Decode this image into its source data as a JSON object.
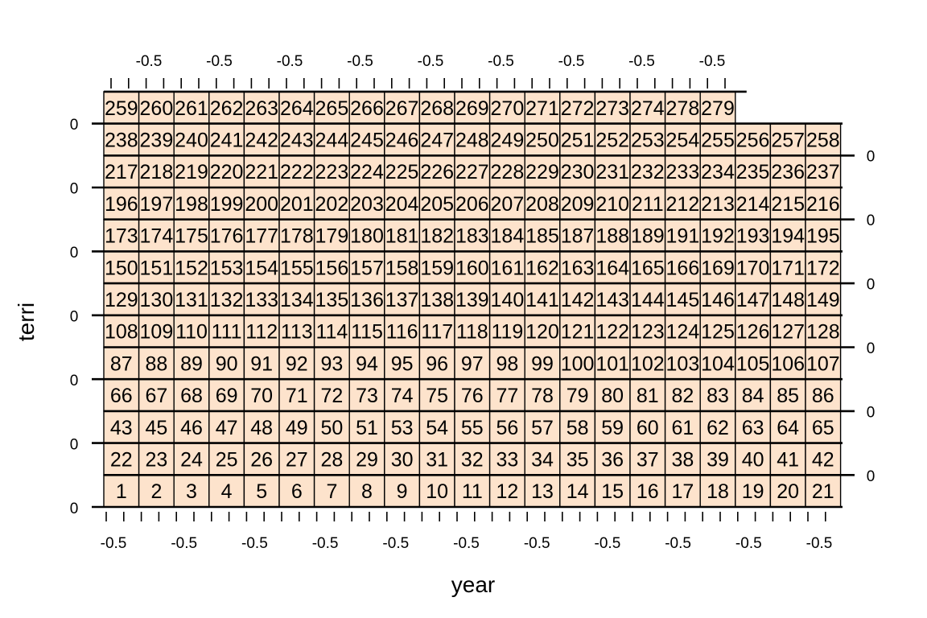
{
  "chart_data": {
    "type": "heatmap",
    "title": "",
    "xlabel": "year",
    "ylabel": "terri",
    "fill_color": "#fde3cc",
    "line_color": "#000000",
    "columns": 21,
    "rows": [
      [
        1,
        2,
        3,
        4,
        5,
        6,
        7,
        8,
        9,
        10,
        11,
        12,
        13,
        14,
        15,
        16,
        17,
        18,
        19,
        20,
        21
      ],
      [
        22,
        23,
        24,
        25,
        26,
        27,
        28,
        29,
        30,
        31,
        32,
        33,
        34,
        35,
        36,
        37,
        38,
        39,
        40,
        41,
        42
      ],
      [
        43,
        45,
        46,
        47,
        48,
        49,
        50,
        51,
        53,
        54,
        55,
        56,
        57,
        58,
        59,
        60,
        61,
        62,
        63,
        64,
        65
      ],
      [
        66,
        67,
        68,
        69,
        70,
        71,
        72,
        73,
        74,
        75,
        76,
        77,
        78,
        79,
        80,
        81,
        82,
        83,
        84,
        85,
        86
      ],
      [
        87,
        88,
        89,
        90,
        91,
        92,
        93,
        94,
        95,
        96,
        97,
        98,
        99,
        100,
        101,
        102,
        103,
        104,
        105,
        106,
        107
      ],
      [
        108,
        109,
        110,
        111,
        112,
        113,
        114,
        115,
        116,
        117,
        118,
        119,
        120,
        121,
        122,
        123,
        124,
        125,
        126,
        127,
        128
      ],
      [
        129,
        130,
        131,
        132,
        133,
        134,
        135,
        136,
        137,
        138,
        139,
        140,
        141,
        142,
        143,
        144,
        145,
        146,
        147,
        148,
        149
      ],
      [
        150,
        151,
        152,
        153,
        154,
        155,
        156,
        157,
        158,
        159,
        160,
        161,
        162,
        163,
        164,
        165,
        166,
        169,
        170,
        171,
        172
      ],
      [
        173,
        174,
        175,
        176,
        177,
        178,
        179,
        180,
        181,
        182,
        183,
        184,
        185,
        187,
        188,
        189,
        191,
        192,
        193,
        194,
        195
      ],
      [
        196,
        197,
        198,
        199,
        200,
        201,
        202,
        203,
        204,
        205,
        206,
        207,
        208,
        209,
        210,
        211,
        212,
        213,
        214,
        215,
        216
      ],
      [
        217,
        218,
        219,
        220,
        221,
        222,
        223,
        224,
        225,
        226,
        227,
        228,
        229,
        230,
        231,
        232,
        233,
        234,
        235,
        236,
        237
      ],
      [
        238,
        239,
        240,
        241,
        242,
        243,
        244,
        245,
        246,
        247,
        248,
        249,
        250,
        251,
        252,
        253,
        254,
        255,
        256,
        257,
        258
      ],
      [
        259,
        260,
        261,
        262,
        263,
        264,
        265,
        266,
        267,
        268,
        269,
        270,
        271,
        272,
        273,
        274,
        278,
        279
      ]
    ],
    "x_tick_labels_bottom": [
      "-0.5",
      "-0.5",
      "-0.5",
      "-0.5",
      "-0.5",
      "-0.5",
      "-0.5",
      "-0.5",
      "-0.5",
      "-0.5",
      "-0.5"
    ],
    "x_tick_labels_top": [
      "-0.5",
      "-0.5",
      "-0.5",
      "-0.5",
      "-0.5",
      "-0.5",
      "-0.5",
      "-0.5",
      "-0.5"
    ],
    "y_tick_labels_left": [
      "0",
      "0",
      "0",
      "0",
      "0",
      "0",
      "0"
    ],
    "y_tick_labels_right": [
      "0",
      "0",
      "0",
      "0",
      "0",
      "0"
    ]
  }
}
